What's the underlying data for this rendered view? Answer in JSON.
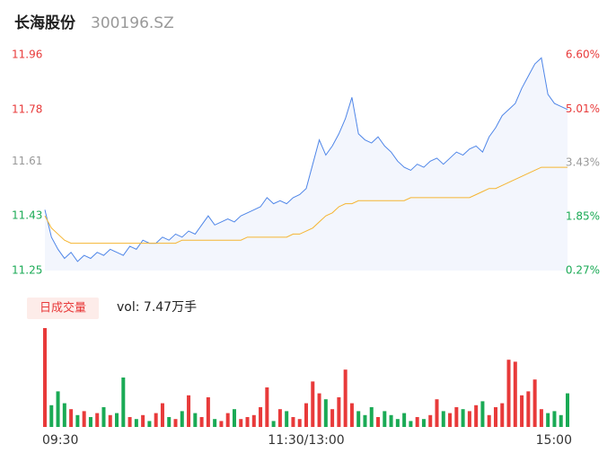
{
  "header": {
    "name": "长海股份",
    "code": "300196.SZ"
  },
  "chart_data": [
    {
      "type": "line",
      "categories": [
        "09:30",
        null,
        null,
        null,
        null,
        null,
        null,
        null,
        null,
        null,
        null,
        null,
        null,
        null,
        null,
        null,
        null,
        null,
        null,
        null,
        null,
        null,
        null,
        null,
        null,
        null,
        null,
        null,
        null,
        null,
        null,
        null,
        null,
        null,
        null,
        null,
        null,
        null,
        null,
        null,
        "11:30/13:00",
        null,
        null,
        null,
        null,
        null,
        null,
        null,
        null,
        null,
        null,
        null,
        null,
        null,
        null,
        null,
        null,
        null,
        null,
        null,
        null,
        null,
        null,
        null,
        null,
        null,
        null,
        null,
        null,
        null,
        null,
        null,
        null,
        null,
        null,
        null,
        null,
        null,
        null,
        null,
        "15:00"
      ],
      "series": [
        {
          "color": "#4f86e8",
          "values": [
            11.45,
            11.36,
            11.32,
            11.29,
            11.31,
            11.28,
            11.3,
            11.29,
            11.31,
            11.3,
            11.32,
            11.31,
            11.3,
            11.33,
            11.32,
            11.35,
            11.34,
            11.34,
            11.36,
            11.35,
            11.37,
            11.36,
            11.38,
            11.37,
            11.4,
            11.43,
            11.4,
            11.41,
            11.42,
            11.41,
            11.43,
            11.44,
            11.45,
            11.46,
            11.49,
            11.47,
            11.48,
            11.47,
            11.49,
            11.5,
            11.52,
            11.6,
            11.68,
            11.63,
            11.66,
            11.7,
            11.75,
            11.82,
            11.7,
            11.68,
            11.67,
            11.69,
            11.66,
            11.64,
            11.61,
            11.59,
            11.58,
            11.6,
            11.59,
            11.61,
            11.62,
            11.6,
            11.62,
            11.64,
            11.63,
            11.65,
            11.66,
            11.64,
            11.69,
            11.72,
            11.76,
            11.78,
            11.8,
            11.85,
            11.89,
            11.93,
            11.95,
            11.83,
            11.8,
            11.79,
            11.78
          ]
        },
        {
          "color": "#f5b532",
          "values": [
            11.43,
            11.39,
            11.37,
            11.35,
            11.34,
            11.34,
            11.34,
            11.34,
            11.34,
            11.34,
            11.34,
            11.34,
            11.34,
            11.34,
            11.34,
            11.34,
            11.34,
            11.34,
            11.34,
            11.34,
            11.34,
            11.35,
            11.35,
            11.35,
            11.35,
            11.35,
            11.35,
            11.35,
            11.35,
            11.35,
            11.35,
            11.36,
            11.36,
            11.36,
            11.36,
            11.36,
            11.36,
            11.36,
            11.37,
            11.37,
            11.38,
            11.39,
            11.41,
            11.43,
            11.44,
            11.46,
            11.47,
            11.47,
            11.48,
            11.48,
            11.48,
            11.48,
            11.48,
            11.48,
            11.48,
            11.48,
            11.49,
            11.49,
            11.49,
            11.49,
            11.49,
            11.49,
            11.49,
            11.49,
            11.49,
            11.49,
            11.5,
            11.51,
            11.52,
            11.52,
            11.53,
            11.54,
            11.55,
            11.56,
            11.57,
            11.58,
            11.59,
            11.59,
            11.59,
            11.59,
            11.59
          ]
        }
      ],
      "ylim": [
        11.25,
        11.96
      ],
      "yticks": [
        11.25,
        11.43,
        11.61,
        11.78,
        11.96
      ],
      "ytick_colors": [
        "#1aaa55",
        "#1aaa55",
        "#999999",
        "#e83a3a",
        "#e83a3a"
      ],
      "y2lim": [
        0.27,
        6.6
      ],
      "y2ticks": [
        {
          "value": 0.27,
          "label": "0.27%"
        },
        {
          "value": 1.85,
          "label": "1.85%"
        },
        {
          "value": 3.43,
          "label": "3.43%"
        },
        {
          "value": 5.01,
          "label": "5.01%"
        },
        {
          "value": 6.6,
          "label": "6.60%"
        }
      ],
      "area_color": "#f3f6fd"
    },
    {
      "type": "bar",
      "legend": "日成交量",
      "summary": "vol: 7.47万手",
      "up_color": "#e83a3a",
      "down_color": "#1aaa55",
      "values": [
        5000,
        1100,
        1800,
        1200,
        900,
        600,
        800,
        500,
        700,
        1000,
        600,
        700,
        2500,
        500,
        400,
        600,
        300,
        700,
        1200,
        500,
        400,
        800,
        1600,
        700,
        500,
        1500,
        400,
        300,
        700,
        900,
        400,
        500,
        600,
        1000,
        2000,
        300,
        900,
        800,
        500,
        400,
        1200,
        2300,
        1700,
        1400,
        900,
        1500,
        2900,
        1200,
        800,
        600,
        1000,
        500,
        800,
        600,
        400,
        700,
        300,
        500,
        400,
        600,
        1400,
        800,
        700,
        1000,
        900,
        800,
        1100,
        1300,
        600,
        1000,
        1200,
        3400,
        3300,
        1600,
        1800,
        2400,
        900,
        700,
        800,
        600,
        1700
      ],
      "ylim": [
        0,
        5000
      ]
    }
  ]
}
